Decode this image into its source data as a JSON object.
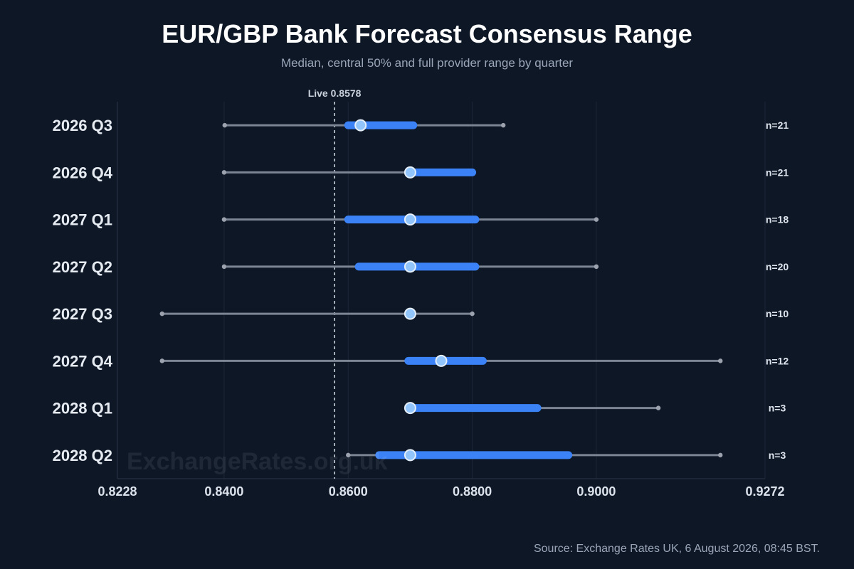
{
  "chart_data": {
    "type": "range",
    "title": "EUR/GBP Bank Forecast Consensus Range",
    "subtitle": "Median, central 50% and full provider range by quarter",
    "xlim": [
      0.8228,
      0.9272
    ],
    "xticks": [
      "0.8228",
      "0.8400",
      "0.8600",
      "0.8800",
      "0.9000",
      "0.9272"
    ],
    "live": {
      "label": "Live 0.8578",
      "value": 0.8578
    },
    "rows": [
      {
        "label": "2026 Q3",
        "min": 0.8401,
        "q1": 0.86,
        "median": 0.862,
        "q3": 0.8705,
        "max": 0.885,
        "n_label": "n=21"
      },
      {
        "label": "2026 Q4",
        "min": 0.84,
        "q1": 0.87,
        "median": 0.87,
        "q3": 0.88,
        "max": 0.88,
        "n_label": "n=21"
      },
      {
        "label": "2027 Q1",
        "min": 0.84,
        "q1": 0.86,
        "median": 0.87,
        "q3": 0.8805,
        "max": 0.9,
        "n_label": "n=18"
      },
      {
        "label": "2027 Q2",
        "min": 0.84,
        "q1": 0.8617,
        "median": 0.87,
        "q3": 0.8805,
        "max": 0.9,
        "n_label": "n=20"
      },
      {
        "label": "2027 Q3",
        "min": 0.83,
        "q1": 0.87,
        "median": 0.87,
        "q3": 0.87,
        "max": 0.88,
        "n_label": "n=10"
      },
      {
        "label": "2027 Q4",
        "min": 0.83,
        "q1": 0.8697,
        "median": 0.875,
        "q3": 0.8817,
        "max": 0.92,
        "n_label": "n=12"
      },
      {
        "label": "2028 Q1",
        "min": 0.87,
        "q1": 0.87,
        "median": 0.87,
        "q3": 0.8905,
        "max": 0.91,
        "n_label": "n=3"
      },
      {
        "label": "2028 Q2",
        "min": 0.86,
        "q1": 0.865,
        "median": 0.87,
        "q3": 0.8955,
        "max": 0.92,
        "n_label": "n=3"
      }
    ],
    "colors": {
      "background": "#0e1726",
      "whisker": "#7c8594",
      "iqr": "#3b82f6",
      "median_fill": "#93c5fd",
      "median_stroke": "#e5effa",
      "live_line": "#c9d1dc",
      "grid": "#1c2636"
    },
    "grid": true
  },
  "watermark": "ExchangeRates.org.uk",
  "source": "Source: Exchange Rates UK, 6 August 2026, 08:45 BST."
}
